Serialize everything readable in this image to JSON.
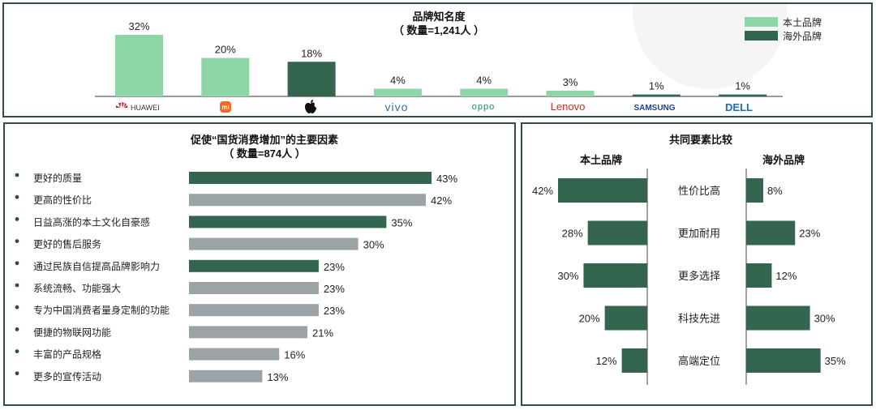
{
  "colors": {
    "local": "#8ed6a8",
    "foreign": "#34654f",
    "grey": "#9ca3a6",
    "border": "#2f4f3f"
  },
  "chart_data": [
    {
      "type": "bar",
      "title": "品牌知名度",
      "subtitle": "（ 数量=1,241人 ）",
      "legend": {
        "placement": "top-right",
        "entries": [
          "本土品牌",
          "海外品牌"
        ]
      },
      "categories": [
        "HUAWEI",
        "mi",
        "apple",
        "vivo",
        "oppo",
        "Lenovo",
        "SAMSUNG",
        "DELL"
      ],
      "values": [
        32,
        20,
        18,
        4,
        4,
        3,
        1,
        1
      ],
      "labels": [
        "32%",
        "20%",
        "18%",
        "4%",
        "4%",
        "3%",
        "1%",
        "1%"
      ],
      "groups": [
        "local",
        "local",
        "foreign",
        "local",
        "local",
        "local",
        "foreign",
        "foreign"
      ],
      "ylim": [
        0,
        32
      ]
    },
    {
      "type": "bar",
      "orientation": "horizontal",
      "title": "促使“国货消费增加”的主要因素",
      "subtitle": "（ 数量=874人 ）",
      "categories": [
        "更好的质量",
        "更高的性价比",
        "日益高涨的本土文化自豪感",
        "更好的售后服务",
        "通过民族自信提高品牌影响力",
        "系统流畅、功能强大",
        "专为中国消费者量身定制的功能",
        "便捷的物联网功能",
        "丰富的产品规格",
        "更多的宣传活动"
      ],
      "values": [
        43,
        42,
        35,
        30,
        23,
        23,
        23,
        21,
        16,
        13
      ],
      "labels": [
        "43%",
        "42%",
        "35%",
        "30%",
        "23%",
        "23%",
        "23%",
        "21%",
        "16%",
        "13%"
      ],
      "highlight": [
        true,
        false,
        true,
        false,
        true,
        false,
        false,
        false,
        false,
        false
      ],
      "xlim": [
        0,
        43
      ]
    },
    {
      "type": "bar",
      "orientation": "horizontal",
      "title": "共同要素比较",
      "categories": [
        "性价比高",
        "更加耐用",
        "更多选择",
        "科技先进",
        "高端定位"
      ],
      "series": [
        {
          "name": "本土品牌",
          "values": [
            42,
            28,
            30,
            20,
            12
          ],
          "labels": [
            "42%",
            "28%",
            "30%",
            "20%",
            "12%"
          ]
        },
        {
          "name": "海外品牌",
          "values": [
            8,
            23,
            12,
            30,
            35
          ],
          "labels": [
            "8%",
            "23%",
            "12%",
            "30%",
            "35%"
          ]
        }
      ],
      "xlim": [
        0,
        42
      ]
    }
  ]
}
